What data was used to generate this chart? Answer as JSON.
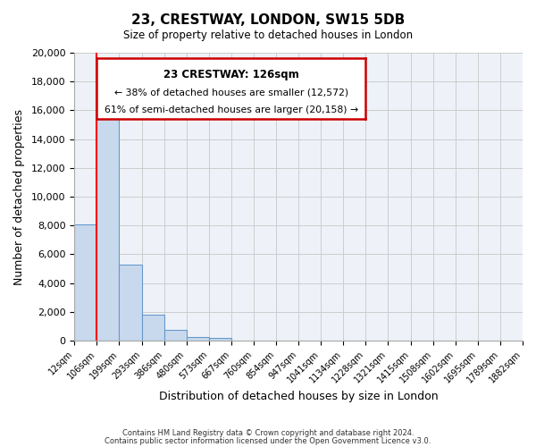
{
  "title": "23, CRESTWAY, LONDON, SW15 5DB",
  "subtitle": "Size of property relative to detached houses in London",
  "xlabel": "Distribution of detached houses by size in London",
  "ylabel": "Number of detached properties",
  "xtick_labels": [
    "12sqm",
    "106sqm",
    "199sqm",
    "293sqm",
    "386sqm",
    "480sqm",
    "573sqm",
    "667sqm",
    "760sqm",
    "854sqm",
    "947sqm",
    "1041sqm",
    "1134sqm",
    "1228sqm",
    "1321sqm",
    "1415sqm",
    "1508sqm",
    "1602sqm",
    "1695sqm",
    "1789sqm",
    "1882sqm"
  ],
  "bar_values": [
    8100,
    16600,
    5300,
    1800,
    750,
    280,
    200,
    0,
    0,
    0,
    0,
    0,
    0,
    0,
    0,
    0,
    0,
    0,
    0,
    0
  ],
  "bar_color": "#c9d9ed",
  "bar_edge_color": "#6699cc",
  "red_line_x": 1.0,
  "annotation_title": "23 CRESTWAY: 126sqm",
  "annotation_line1": "← 38% of detached houses are smaller (12,572)",
  "annotation_line2": "61% of semi-detached houses are larger (20,158) →",
  "annotation_box_color": "#ffffff",
  "annotation_box_edge": "#cc0000",
  "ylim": [
    0,
    20000
  ],
  "yticks": [
    0,
    2000,
    4000,
    6000,
    8000,
    10000,
    12000,
    14000,
    16000,
    18000,
    20000
  ],
  "footer1": "Contains HM Land Registry data © Crown copyright and database right 2024.",
  "footer2": "Contains public sector information licensed under the Open Government Licence v3.0.",
  "grid_color": "#cccccc",
  "background_color": "#eef2f8"
}
